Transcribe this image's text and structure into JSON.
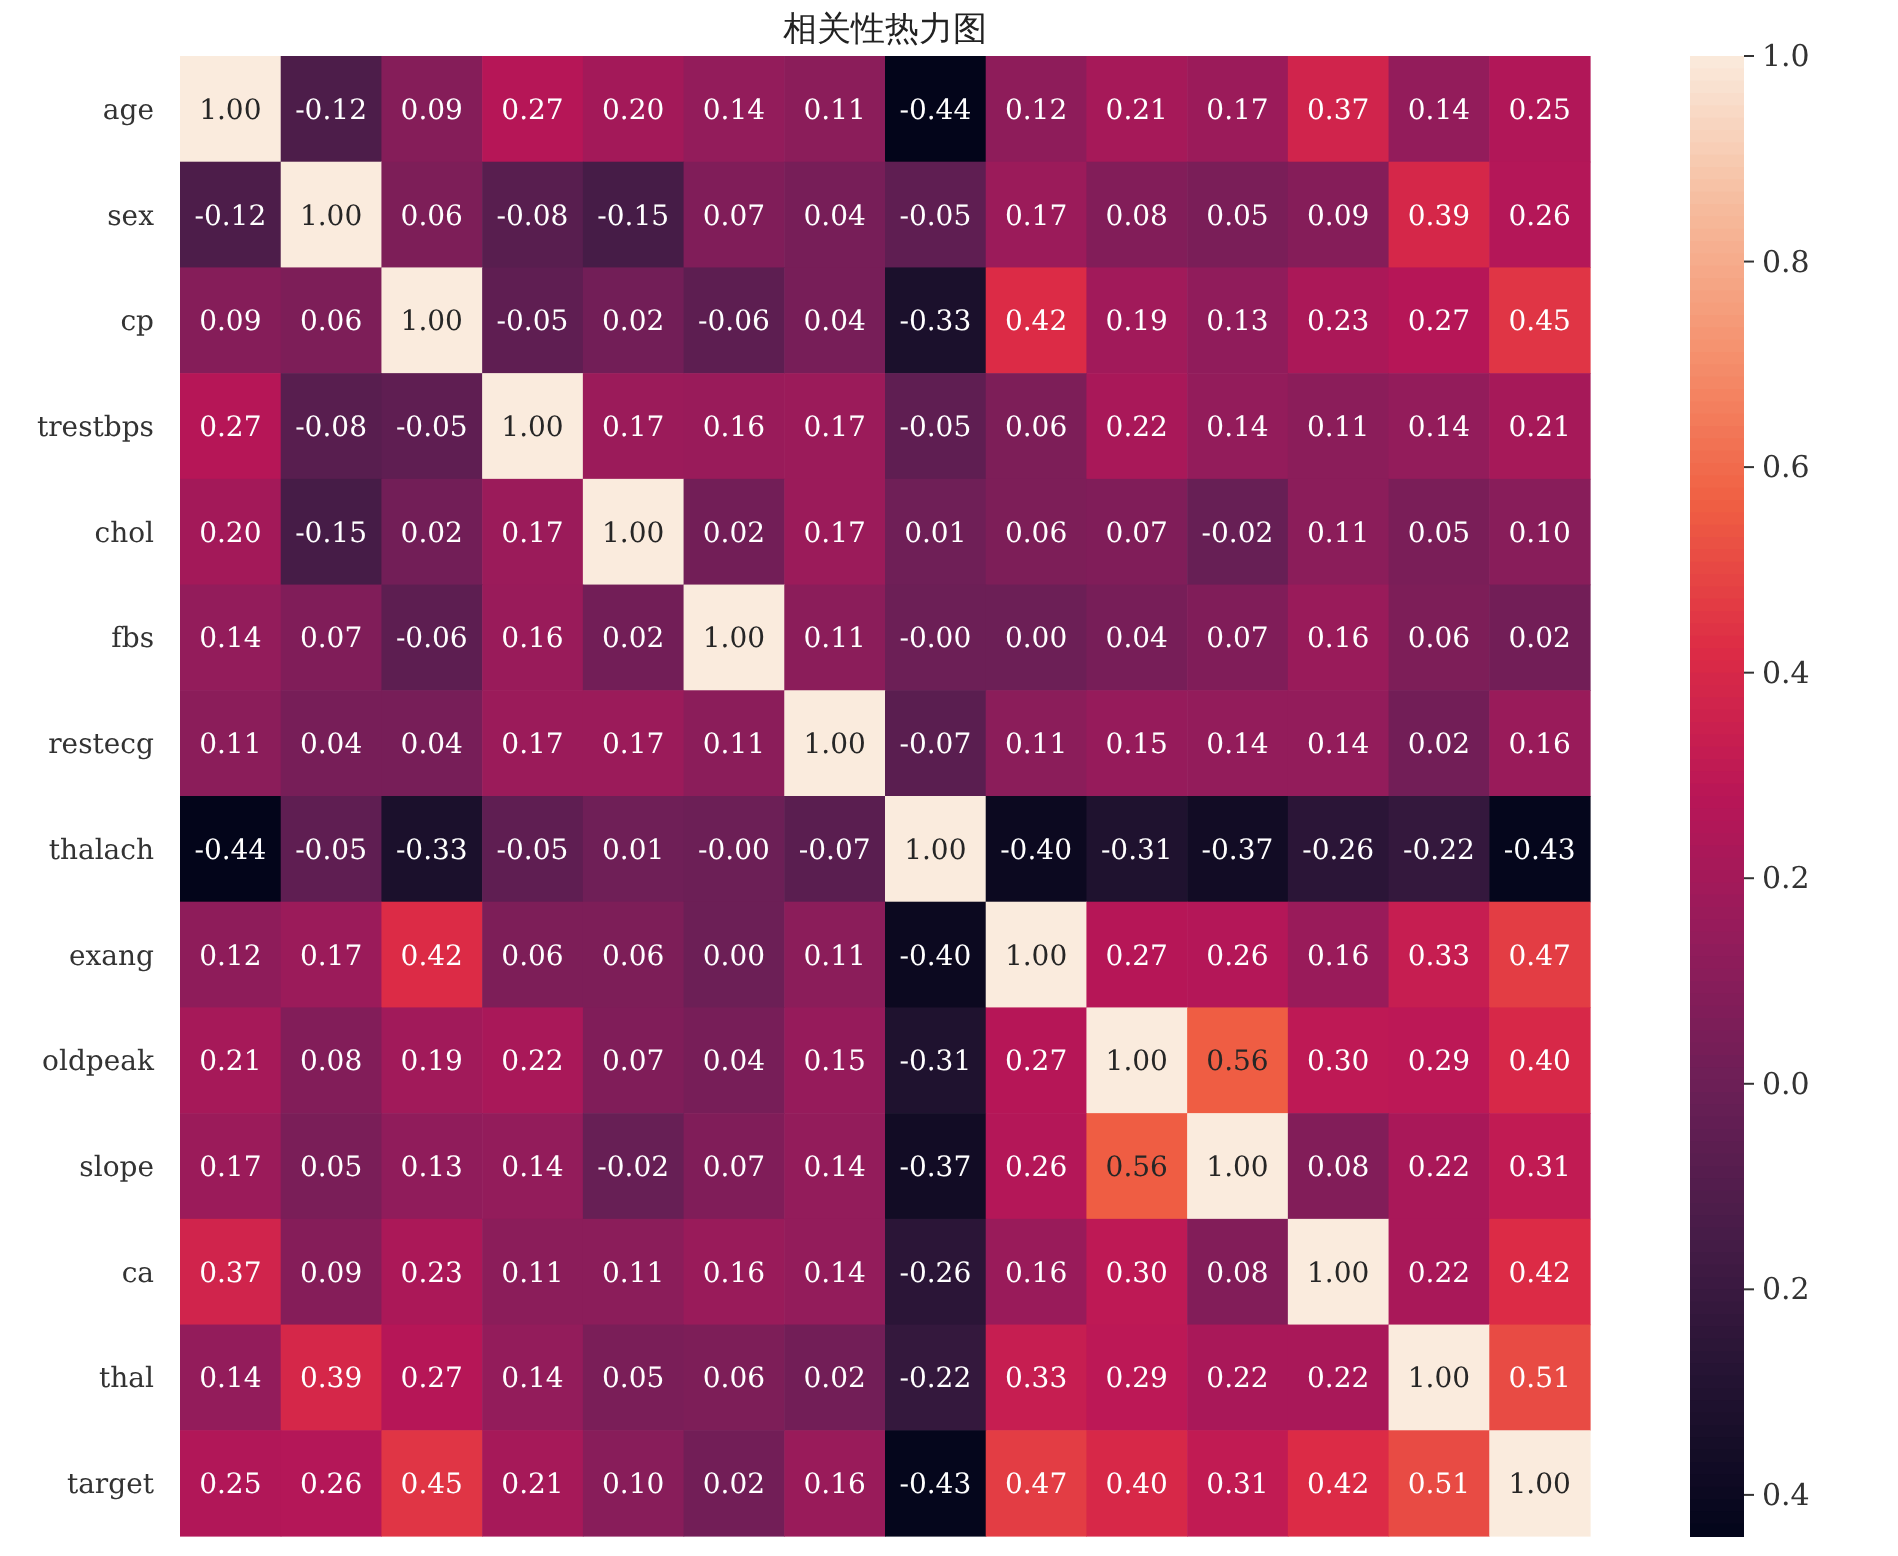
{
  "chart_data": {
    "type": "heatmap",
    "title": "相关性热力图",
    "categories": [
      null,
      null,
      null,
      null,
      null,
      null,
      null,
      null,
      null,
      null,
      null,
      null,
      null,
      null
    ],
    "y_categories": [
      "age",
      "sex",
      "cp",
      "trestbps",
      "chol",
      "fbs",
      "restecg",
      "thalach",
      "exang",
      "oldpeak",
      "slope",
      "ca",
      "thal",
      "target"
    ],
    "cells": [
      [
        1.0,
        -0.12,
        0.09,
        0.27,
        0.2,
        0.14,
        0.11,
        -0.44,
        0.12,
        0.21,
        0.17,
        0.37,
        0.14,
        0.25
      ],
      [
        -0.12,
        1.0,
        0.06,
        -0.08,
        -0.15,
        0.07,
        0.04,
        -0.05,
        0.17,
        0.08,
        0.05,
        0.09,
        0.39,
        0.26
      ],
      [
        0.09,
        0.06,
        1.0,
        -0.05,
        0.02,
        -0.06,
        0.04,
        -0.33,
        0.42,
        0.19,
        0.13,
        0.23,
        0.27,
        0.45
      ],
      [
        0.27,
        -0.08,
        -0.05,
        1.0,
        0.17,
        0.16,
        0.17,
        -0.05,
        0.06,
        0.22,
        0.14,
        0.11,
        0.14,
        0.21
      ],
      [
        0.2,
        -0.15,
        0.02,
        0.17,
        1.0,
        0.02,
        0.17,
        0.01,
        0.06,
        0.07,
        -0.02,
        0.11,
        0.05,
        0.1
      ],
      [
        0.14,
        0.07,
        -0.06,
        0.16,
        0.02,
        1.0,
        0.11,
        -0.0,
        0.0,
        0.04,
        0.07,
        0.16,
        0.06,
        0.02
      ],
      [
        0.11,
        0.04,
        0.04,
        0.17,
        0.17,
        0.11,
        1.0,
        -0.07,
        0.11,
        0.15,
        0.14,
        0.14,
        0.02,
        0.16
      ],
      [
        -0.44,
        -0.05,
        -0.33,
        -0.05,
        0.01,
        -0.0,
        -0.07,
        1.0,
        -0.4,
        -0.31,
        -0.37,
        -0.26,
        -0.22,
        -0.43
      ],
      [
        0.12,
        0.17,
        0.42,
        0.06,
        0.06,
        0.0,
        0.11,
        -0.4,
        1.0,
        0.27,
        0.26,
        0.16,
        0.33,
        0.47
      ],
      [
        0.21,
        0.08,
        0.19,
        0.22,
        0.07,
        0.04,
        0.15,
        -0.31,
        0.27,
        1.0,
        0.56,
        0.3,
        0.29,
        0.4
      ],
      [
        0.17,
        0.05,
        0.13,
        0.14,
        -0.02,
        0.07,
        0.14,
        -0.37,
        0.26,
        0.56,
        1.0,
        0.08,
        0.22,
        0.31
      ],
      [
        0.37,
        0.09,
        0.23,
        0.11,
        0.11,
        0.16,
        0.14,
        -0.26,
        0.16,
        0.3,
        0.08,
        1.0,
        0.22,
        0.42
      ],
      [
        0.14,
        0.39,
        0.27,
        0.14,
        0.05,
        0.06,
        0.02,
        -0.22,
        0.33,
        0.29,
        0.22,
        0.22,
        1.0,
        0.51
      ],
      [
        0.25,
        0.26,
        0.45,
        0.21,
        0.1,
        0.02,
        0.16,
        -0.43,
        0.47,
        0.4,
        0.31,
        0.42,
        0.51,
        1.0
      ]
    ],
    "cell_labels": [
      [
        "1.00",
        "-0.12",
        "0.09",
        "0.27",
        "0.20",
        "0.14",
        "0.11",
        "-0.44",
        "0.12",
        "0.21",
        "0.17",
        "0.37",
        "0.14",
        "0.25"
      ],
      [
        "-0.12",
        "1.00",
        "0.06",
        "-0.08",
        "-0.15",
        "0.07",
        "0.04",
        "-0.05",
        "0.17",
        "0.08",
        "0.05",
        "0.09",
        "0.39",
        "0.26"
      ],
      [
        "0.09",
        "0.06",
        "1.00",
        "-0.05",
        "0.02",
        "-0.06",
        "0.04",
        "-0.33",
        "0.42",
        "0.19",
        "0.13",
        "0.23",
        "0.27",
        "0.45"
      ],
      [
        "0.27",
        "-0.08",
        "-0.05",
        "1.00",
        "0.17",
        "0.16",
        "0.17",
        "-0.05",
        "0.06",
        "0.22",
        "0.14",
        "0.11",
        "0.14",
        "0.21"
      ],
      [
        "0.20",
        "-0.15",
        "0.02",
        "0.17",
        "1.00",
        "0.02",
        "0.17",
        "0.01",
        "0.06",
        "0.07",
        "-0.02",
        "0.11",
        "0.05",
        "0.10"
      ],
      [
        "0.14",
        "0.07",
        "-0.06",
        "0.16",
        "0.02",
        "1.00",
        "0.11",
        "-0.00",
        "0.00",
        "0.04",
        "0.07",
        "0.16",
        "0.06",
        "0.02"
      ],
      [
        "0.11",
        "0.04",
        "0.04",
        "0.17",
        "0.17",
        "0.11",
        "1.00",
        "-0.07",
        "0.11",
        "0.15",
        "0.14",
        "0.14",
        "0.02",
        "0.16"
      ],
      [
        "-0.44",
        "-0.05",
        "-0.33",
        "-0.05",
        "0.01",
        "-0.00",
        "-0.07",
        "1.00",
        "-0.40",
        "-0.31",
        "-0.37",
        "-0.26",
        "-0.22",
        "-0.43"
      ],
      [
        "0.12",
        "0.17",
        "0.42",
        "0.06",
        "0.06",
        "0.00",
        "0.11",
        "-0.40",
        "1.00",
        "0.27",
        "0.26",
        "0.16",
        "0.33",
        "0.47"
      ],
      [
        "0.21",
        "0.08",
        "0.19",
        "0.22",
        "0.07",
        "0.04",
        "0.15",
        "-0.31",
        "0.27",
        "1.00",
        "0.56",
        "0.30",
        "0.29",
        "0.40"
      ],
      [
        "0.17",
        "0.05",
        "0.13",
        "0.14",
        "-0.02",
        "0.07",
        "0.14",
        "-0.37",
        "0.26",
        "0.56",
        "1.00",
        "0.08",
        "0.22",
        "0.31"
      ],
      [
        "0.37",
        "0.09",
        "0.23",
        "0.11",
        "0.11",
        "0.16",
        "0.14",
        "-0.26",
        "0.16",
        "0.30",
        "0.08",
        "1.00",
        "0.22",
        "0.42"
      ],
      [
        "0.14",
        "0.39",
        "0.27",
        "0.14",
        "0.05",
        "0.06",
        "0.02",
        "-0.22",
        "0.33",
        "0.29",
        "0.22",
        "0.22",
        "1.00",
        "0.51"
      ],
      [
        "0.25",
        "0.26",
        "0.45",
        "0.21",
        "0.10",
        "0.02",
        "0.16",
        "-0.43",
        "0.47",
        "0.40",
        "0.31",
        "0.42",
        "0.51",
        "1.00"
      ]
    ],
    "clim": [
      -0.44,
      1.0
    ],
    "cticks": [
      {
        "value": 1,
        "label": "1.0"
      },
      0.8,
      0.6,
      0.4,
      0.2,
      {
        "value": 0,
        "label": "0.0"
      },
      {
        "value": -0.2,
        "label": "0.2"
      },
      {
        "value": -0.4,
        "label": "0.4"
      }
    ]
  }
}
